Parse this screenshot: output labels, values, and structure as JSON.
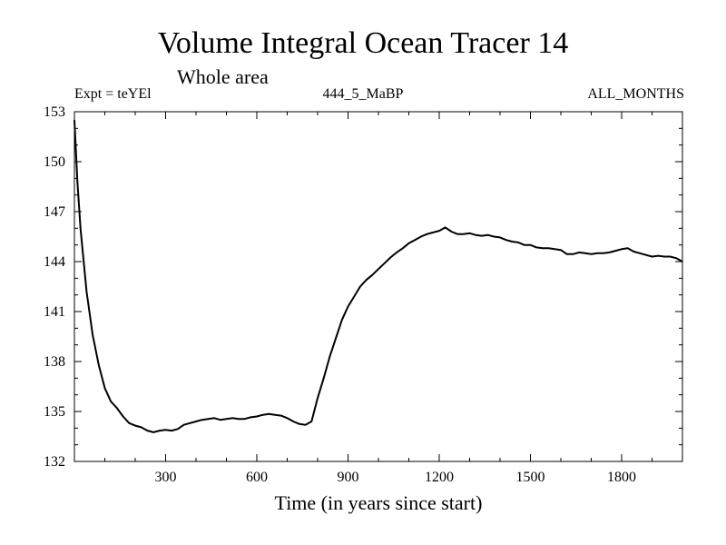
{
  "chart_data": {
    "type": "line",
    "title": "Volume Integral Ocean Tracer 14",
    "subtitle": "Whole area",
    "header_left": "Expt = teYEl",
    "header_center": "444_5_MaBP",
    "header_right": "ALL_MONTHS",
    "xlabel": "Time (in years since start)",
    "ylabel": "",
    "xlim": [
      0,
      2000
    ],
    "ylim": [
      132,
      153
    ],
    "xticks": [
      300,
      600,
      900,
      1200,
      1500,
      1800
    ],
    "yticks": [
      132,
      135,
      138,
      141,
      144,
      147,
      150,
      153
    ],
    "grid": false,
    "series": [
      {
        "x": [
          0,
          10,
          20,
          40,
          60,
          80,
          100,
          120,
          140,
          160,
          180,
          200,
          220,
          240,
          260,
          280,
          300,
          320,
          340,
          360,
          380,
          400,
          420,
          440,
          460,
          480,
          500,
          520,
          540,
          560,
          580,
          600,
          620,
          640,
          660,
          680,
          700,
          720,
          740,
          760,
          780,
          800,
          820,
          840,
          860,
          880,
          900,
          920,
          940,
          960,
          980,
          1000,
          1020,
          1040,
          1060,
          1080,
          1100,
          1120,
          1140,
          1160,
          1180,
          1200,
          1220,
          1240,
          1260,
          1280,
          1300,
          1320,
          1340,
          1360,
          1380,
          1400,
          1420,
          1440,
          1460,
          1480,
          1500,
          1520,
          1540,
          1560,
          1580,
          1600,
          1620,
          1640,
          1660,
          1680,
          1700,
          1720,
          1740,
          1760,
          1780,
          1800,
          1820,
          1840,
          1860,
          1880,
          1900,
          1920,
          1940,
          1960,
          1980,
          2000
        ],
        "y": [
          152.5,
          148.8,
          146.0,
          142.2,
          139.6,
          137.8,
          136.4,
          135.6,
          135.2,
          134.7,
          134.3,
          134.15,
          134.05,
          133.85,
          133.75,
          133.85,
          133.9,
          133.85,
          133.95,
          134.2,
          134.3,
          134.4,
          134.5,
          134.55,
          134.6,
          134.5,
          134.55,
          134.6,
          134.55,
          134.55,
          134.65,
          134.7,
          134.8,
          134.85,
          134.8,
          134.75,
          134.6,
          134.4,
          134.25,
          134.2,
          134.4,
          135.8,
          137.0,
          138.3,
          139.4,
          140.5,
          141.3,
          141.9,
          142.5,
          142.9,
          143.2,
          143.55,
          143.9,
          144.25,
          144.55,
          144.8,
          145.1,
          145.3,
          145.5,
          145.65,
          145.75,
          145.85,
          146.05,
          145.8,
          145.65,
          145.65,
          145.7,
          145.6,
          145.55,
          145.6,
          145.5,
          145.45,
          145.3,
          145.2,
          145.15,
          145.0,
          145.0,
          144.85,
          144.8,
          144.8,
          144.75,
          144.7,
          144.45,
          144.45,
          144.55,
          144.5,
          144.45,
          144.5,
          144.5,
          144.55,
          144.65,
          144.75,
          144.8,
          144.6,
          144.5,
          144.4,
          144.3,
          144.35,
          144.3,
          144.3,
          144.2,
          144.0
        ]
      }
    ]
  }
}
